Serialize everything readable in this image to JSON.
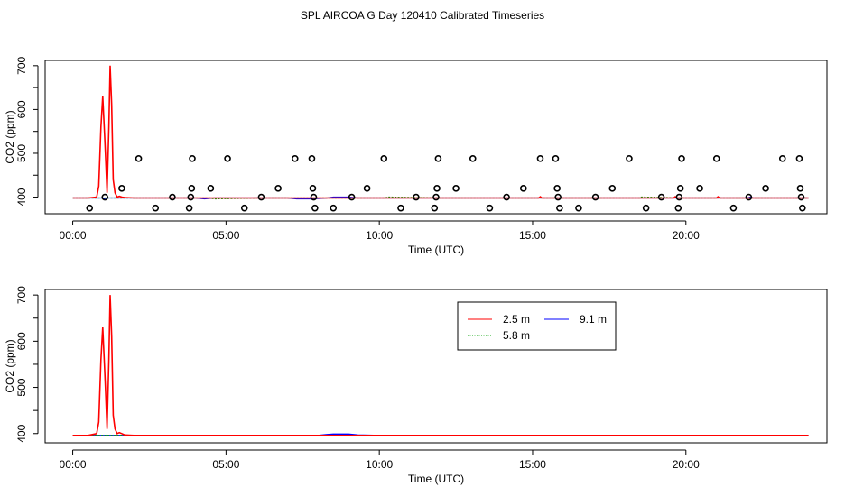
{
  "title": "SPL AIRCOA G  Day 120410  Calibrated Timeseries",
  "colors": {
    "s25": "#ff0000",
    "s58": "#00a000",
    "s91": "#0000ff",
    "axis": "#000000"
  },
  "chart_data": [
    {
      "type": "line",
      "xlabel": "Time (UTC)",
      "ylabel": "CO2 (ppm)",
      "xlim": [
        -0.9,
        24.6
      ],
      "ylim": [
        362,
        712
      ],
      "xticks": [
        0,
        5,
        10,
        15,
        20
      ],
      "xticklabels": [
        "00:00",
        "05:00",
        "10:00",
        "15:00",
        "20:00"
      ],
      "yticks": [
        400,
        500,
        600,
        700
      ],
      "yticklabels": [
        "400",
        "500",
        "600",
        "700"
      ],
      "series": [
        {
          "name": "2.5 m",
          "color": "#ff0000",
          "x": [
            0,
            0.5,
            0.78,
            0.85,
            0.92,
            0.98,
            1.04,
            1.08,
            1.12,
            1.18,
            1.22,
            1.27,
            1.32,
            1.38,
            1.45,
            1.52,
            1.6,
            1.7,
            2.0,
            5.0,
            10.0,
            15.2,
            15.25,
            15.3,
            17.5,
            19.6,
            19.65,
            19.7,
            20.0,
            21.0,
            21.05,
            21.1,
            24.0
          ],
          "y": [
            398,
            398,
            400,
            425,
            560,
            630,
            540,
            480,
            410,
            560,
            700,
            610,
            440,
            410,
            400,
            402,
            400,
            399,
            398,
            398,
            398,
            398,
            401,
            398,
            398,
            398,
            401,
            398,
            398,
            398,
            401,
            398,
            398
          ]
        },
        {
          "name": "5.8 m",
          "color": "#00a000",
          "x": [
            0,
            2.0,
            4.5,
            4.6,
            6.0,
            10.2,
            10.25,
            12.0,
            16.0,
            18.5,
            18.55,
            20.0,
            22.0,
            24.0
          ],
          "y": [
            398,
            398,
            398,
            396,
            398,
            398,
            400,
            398,
            398,
            398,
            400,
            398,
            398,
            398
          ]
        },
        {
          "name": "9.1 m",
          "color": "#0000ff",
          "x": [
            0,
            1.0,
            1.02,
            1.1,
            2.0,
            4.0,
            4.3,
            4.6,
            6.0,
            7.0,
            7.3,
            7.8,
            8.3,
            8.5,
            9.0,
            9.3,
            10.0,
            12.0,
            14.0,
            16.0,
            17.0,
            18.0,
            19.0,
            20.0,
            22.0,
            22.1,
            22.2,
            24.0
          ],
          "y": [
            398,
            398,
            396,
            398,
            398,
            398,
            396,
            398,
            398,
            398,
            396,
            396,
            398,
            400,
            400,
            398,
            398,
            398,
            398,
            398,
            398,
            398,
            398,
            398,
            398,
            400,
            398,
            398
          ]
        }
      ],
      "points": [
        {
          "x": 0.55,
          "y": 375
        },
        {
          "x": 1.05,
          "y": 400
        },
        {
          "x": 1.6,
          "y": 420
        },
        {
          "x": 2.15,
          "y": 488
        },
        {
          "x": 2.7,
          "y": 375
        },
        {
          "x": 3.25,
          "y": 400
        },
        {
          "x": 3.8,
          "y": 375
        },
        {
          "x": 3.85,
          "y": 400
        },
        {
          "x": 3.88,
          "y": 420
        },
        {
          "x": 3.9,
          "y": 488
        },
        {
          "x": 4.5,
          "y": 420
        },
        {
          "x": 5.05,
          "y": 488
        },
        {
          "x": 5.6,
          "y": 375
        },
        {
          "x": 6.15,
          "y": 400
        },
        {
          "x": 6.7,
          "y": 420
        },
        {
          "x": 7.25,
          "y": 488
        },
        {
          "x": 7.8,
          "y": 488
        },
        {
          "x": 7.83,
          "y": 420
        },
        {
          "x": 7.86,
          "y": 400
        },
        {
          "x": 7.9,
          "y": 375
        },
        {
          "x": 8.5,
          "y": 375
        },
        {
          "x": 9.1,
          "y": 400
        },
        {
          "x": 9.6,
          "y": 420
        },
        {
          "x": 10.15,
          "y": 488
        },
        {
          "x": 10.7,
          "y": 375
        },
        {
          "x": 11.2,
          "y": 400
        },
        {
          "x": 11.8,
          "y": 375
        },
        {
          "x": 11.85,
          "y": 400
        },
        {
          "x": 11.88,
          "y": 420
        },
        {
          "x": 11.92,
          "y": 488
        },
        {
          "x": 12.5,
          "y": 420
        },
        {
          "x": 13.05,
          "y": 488
        },
        {
          "x": 13.6,
          "y": 375
        },
        {
          "x": 14.15,
          "y": 400
        },
        {
          "x": 14.7,
          "y": 420
        },
        {
          "x": 15.25,
          "y": 488
        },
        {
          "x": 15.75,
          "y": 488
        },
        {
          "x": 15.8,
          "y": 420
        },
        {
          "x": 15.83,
          "y": 400
        },
        {
          "x": 15.88,
          "y": 375
        },
        {
          "x": 16.5,
          "y": 375
        },
        {
          "x": 17.05,
          "y": 400
        },
        {
          "x": 17.6,
          "y": 420
        },
        {
          "x": 18.15,
          "y": 488
        },
        {
          "x": 18.7,
          "y": 375
        },
        {
          "x": 19.2,
          "y": 400
        },
        {
          "x": 19.75,
          "y": 375
        },
        {
          "x": 19.78,
          "y": 400
        },
        {
          "x": 19.82,
          "y": 420
        },
        {
          "x": 19.86,
          "y": 488
        },
        {
          "x": 20.45,
          "y": 420
        },
        {
          "x": 21.0,
          "y": 488
        },
        {
          "x": 21.55,
          "y": 375
        },
        {
          "x": 22.05,
          "y": 400
        },
        {
          "x": 22.6,
          "y": 420
        },
        {
          "x": 23.15,
          "y": 488
        },
        {
          "x": 23.7,
          "y": 488
        },
        {
          "x": 23.73,
          "y": 420
        },
        {
          "x": 23.76,
          "y": 400
        },
        {
          "x": 23.8,
          "y": 375
        }
      ]
    },
    {
      "type": "line",
      "xlabel": "Time (UTC)",
      "ylabel": "CO2 (ppm)",
      "xlim": [
        -0.9,
        24.6
      ],
      "ylim": [
        380,
        712
      ],
      "xticks": [
        0,
        5,
        10,
        15,
        20
      ],
      "xticklabels": [
        "00:00",
        "05:00",
        "10:00",
        "15:00",
        "20:00"
      ],
      "yticks": [
        400,
        500,
        600,
        700
      ],
      "yticklabels": [
        "400",
        "500",
        "600",
        "700"
      ],
      "legend": {
        "position": "top-right",
        "entries": [
          {
            "label": "2.5 m",
            "color": "#ff0000",
            "style": "solid"
          },
          {
            "label": "5.8 m",
            "color": "#00a000",
            "style": "dotted"
          },
          {
            "label": "9.1 m",
            "color": "#0000ff",
            "style": "solid"
          }
        ]
      },
      "series": [
        {
          "name": "2.5 m",
          "color": "#ff0000",
          "x": [
            0,
            0.5,
            0.78,
            0.85,
            0.92,
            0.98,
            1.04,
            1.08,
            1.12,
            1.18,
            1.22,
            1.27,
            1.32,
            1.38,
            1.45,
            1.52,
            1.6,
            1.7,
            2.0,
            24.0
          ],
          "y": [
            396,
            396,
            400,
            425,
            560,
            630,
            540,
            480,
            410,
            560,
            700,
            610,
            440,
            410,
            400,
            402,
            400,
            397,
            396,
            396
          ]
        },
        {
          "name": "5.8 m",
          "color": "#00a000",
          "x": [
            0,
            2.0,
            6.0,
            10.0,
            12.0,
            16.0,
            18.0,
            20.0,
            22.0,
            24.0
          ],
          "y": [
            396,
            396,
            396,
            396,
            396,
            396,
            396,
            396,
            396,
            396
          ]
        },
        {
          "name": "9.1 m",
          "color": "#0000ff",
          "x": [
            0,
            2.0,
            4.0,
            6.0,
            8.0,
            8.3,
            8.5,
            9.0,
            9.3,
            10.0,
            12.0,
            14.0,
            16.0,
            18.0,
            20.0,
            22.0,
            24.0
          ],
          "y": [
            396,
            396,
            396,
            396,
            396,
            398,
            399,
            399,
            397,
            396,
            396,
            396,
            396,
            396,
            396,
            396,
            396
          ]
        }
      ]
    }
  ]
}
